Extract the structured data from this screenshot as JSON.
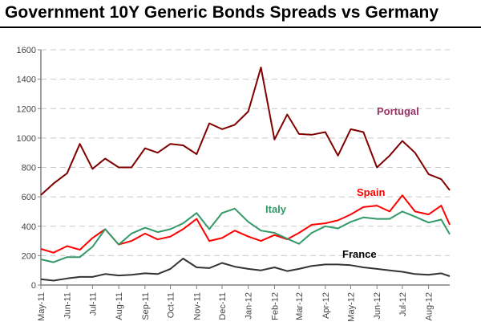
{
  "chart_data": {
    "type": "line",
    "title": "Government 10Y Generic Bonds Spreads vs Germany",
    "xlabel": "",
    "ylabel": "",
    "ylim": [
      0,
      1600
    ],
    "yticks": [
      "0",
      "200",
      "400",
      "600",
      "800",
      "1000",
      "1200",
      "1400",
      "1600"
    ],
    "xlim": [
      "2011-05-01",
      "2012-08-26"
    ],
    "xticks": [
      "May-11",
      "Jun-11",
      "Jul-11",
      "Aug-11",
      "Sep-11",
      "Oct-11",
      "Nov-11",
      "Dec-11",
      "Jan-12",
      "Feb-12",
      "Mar-12",
      "Apr-12",
      "May-12",
      "Jun-12",
      "Jul-12",
      "Aug-12"
    ],
    "grid": "horizontal dashed",
    "legend": "inline labels",
    "x": [
      "2011-05-01",
      "2011-05-16",
      "2011-06-01",
      "2011-06-16",
      "2011-07-01",
      "2011-07-16",
      "2011-08-01",
      "2011-08-16",
      "2011-09-01",
      "2011-09-16",
      "2011-10-01",
      "2011-10-16",
      "2011-11-01",
      "2011-11-16",
      "2011-12-01",
      "2011-12-16",
      "2012-01-01",
      "2012-01-16",
      "2012-02-01",
      "2012-02-16",
      "2012-03-01",
      "2012-03-16",
      "2012-04-01",
      "2012-04-16",
      "2012-05-01",
      "2012-05-16",
      "2012-06-01",
      "2012-06-16",
      "2012-07-01",
      "2012-07-16",
      "2012-08-01",
      "2012-08-16",
      "2012-08-26"
    ],
    "series": [
      {
        "name": "Portugal",
        "color": "#800000",
        "values": [
          612,
          690,
          760,
          960,
          790,
          860,
          800,
          800,
          930,
          900,
          960,
          950,
          890,
          1100,
          1060,
          1090,
          1180,
          1480,
          990,
          1160,
          1027,
          1022,
          1040,
          880,
          1060,
          1040,
          800,
          880,
          980,
          900,
          754,
          720,
          645
        ]
      },
      {
        "name": "Spain",
        "color": "#ff0000",
        "values": [
          246,
          220,
          265,
          240,
          320,
          380,
          275,
          300,
          350,
          310,
          330,
          380,
          450,
          300,
          320,
          370,
          330,
          300,
          340,
          311,
          355,
          410,
          420,
          440,
          480,
          530,
          540,
          500,
          610,
          500,
          480,
          540,
          410
        ]
      },
      {
        "name": "Italy",
        "color": "#339966",
        "values": [
          175,
          155,
          190,
          190,
          260,
          380,
          275,
          350,
          390,
          360,
          380,
          420,
          490,
          380,
          490,
          520,
          430,
          370,
          355,
          315,
          280,
          355,
          400,
          385,
          430,
          460,
          450,
          450,
          500,
          465,
          425,
          445,
          345
        ]
      },
      {
        "name": "France",
        "color": "#333333",
        "values": [
          40,
          30,
          45,
          55,
          55,
          75,
          65,
          70,
          80,
          75,
          110,
          180,
          120,
          115,
          150,
          125,
          110,
          100,
          120,
          95,
          110,
          130,
          140,
          140,
          135,
          120,
          110,
          100,
          90,
          75,
          70,
          80,
          60
        ]
      }
    ],
    "labels": {
      "portugal": "Portugal",
      "spain": "Spain",
      "italy": "Italy",
      "france": "France"
    },
    "label_colors": {
      "portugal": "#993366",
      "spain": "#ff0000",
      "italy": "#339966",
      "france": "#000000"
    }
  }
}
